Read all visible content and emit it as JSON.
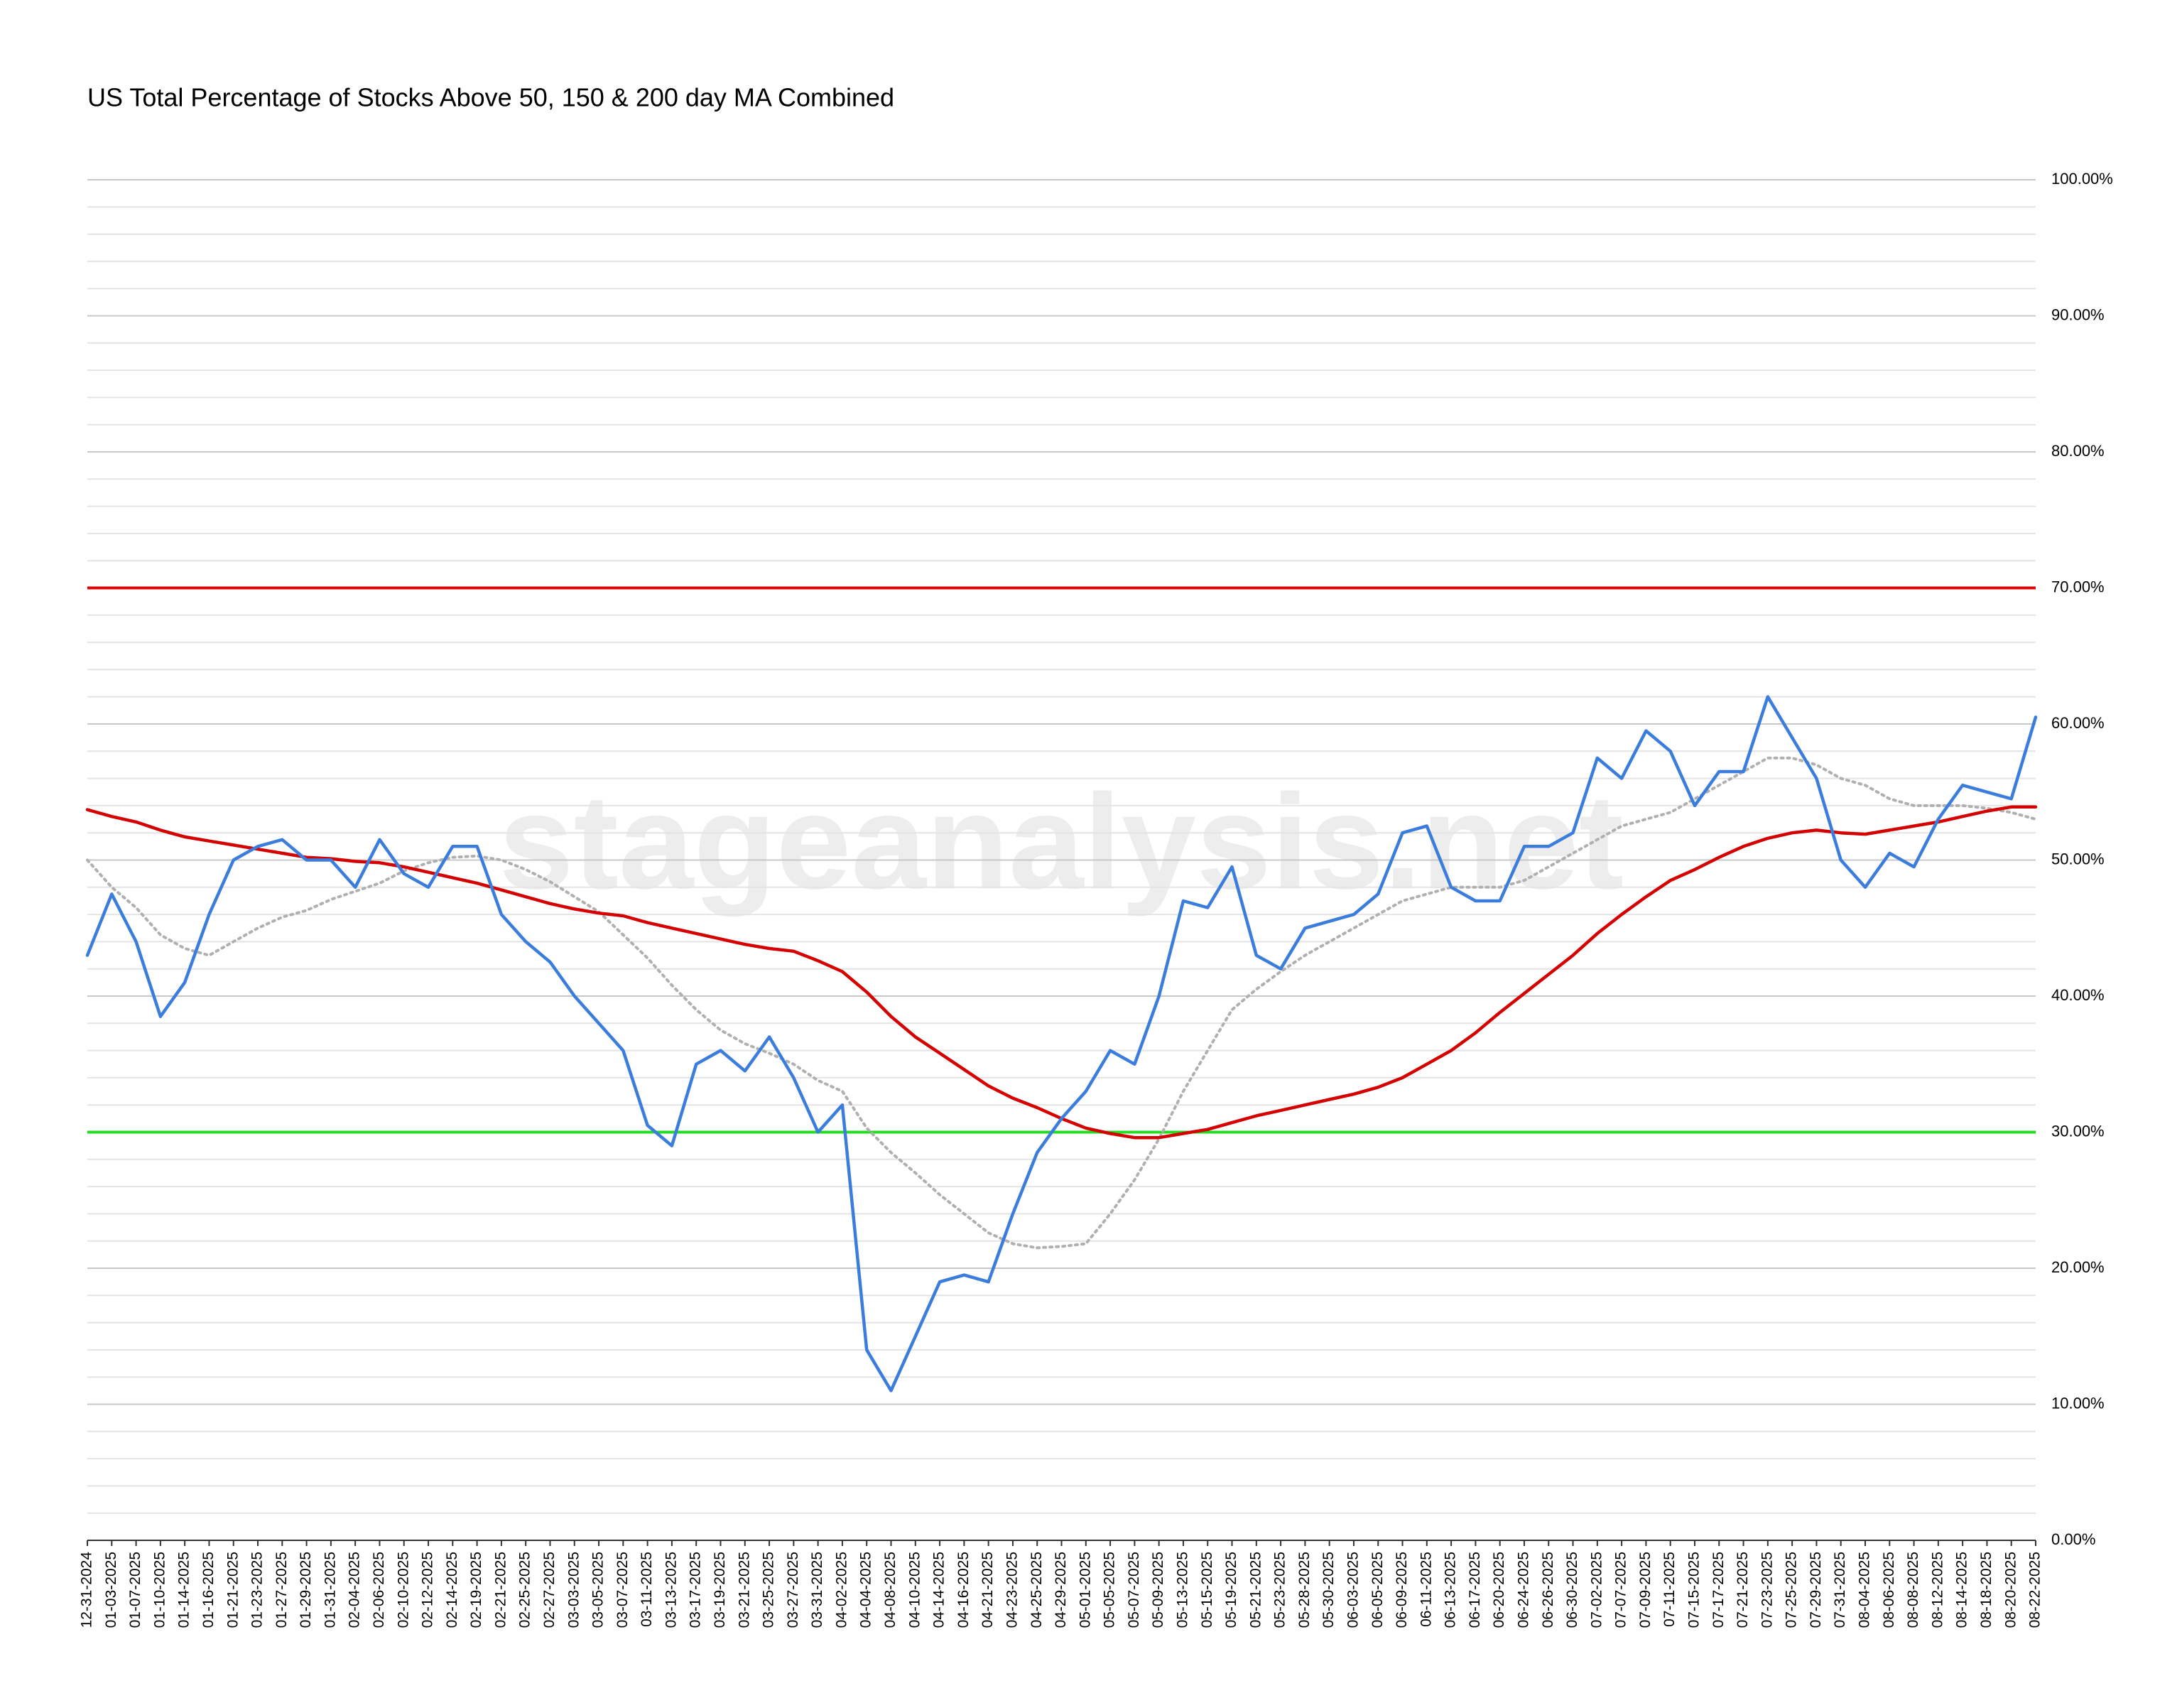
{
  "chart_data": {
    "type": "line",
    "title": "US Total Percentage of Stocks Above 50, 150 & 200 day MA Combined",
    "watermark": "stageanalysis.net",
    "categories": [
      "12-31-2024",
      "01-03-2025",
      "01-07-2025",
      "01-10-2025",
      "01-14-2025",
      "01-16-2025",
      "01-21-2025",
      "01-23-2025",
      "01-27-2025",
      "01-29-2025",
      "01-31-2025",
      "02-04-2025",
      "02-06-2025",
      "02-10-2025",
      "02-12-2025",
      "02-14-2025",
      "02-19-2025",
      "02-21-2025",
      "02-25-2025",
      "02-27-2025",
      "03-03-2025",
      "03-05-2025",
      "03-07-2025",
      "03-11-2025",
      "03-13-2025",
      "03-17-2025",
      "03-19-2025",
      "03-21-2025",
      "03-25-2025",
      "03-27-2025",
      "03-31-2025",
      "04-02-2025",
      "04-04-2025",
      "04-08-2025",
      "04-10-2025",
      "04-14-2025",
      "04-16-2025",
      "04-21-2025",
      "04-23-2025",
      "04-25-2025",
      "04-29-2025",
      "05-01-2025",
      "05-05-2025",
      "05-07-2025",
      "05-09-2025",
      "05-13-2025",
      "05-15-2025",
      "05-19-2025",
      "05-21-2025",
      "05-23-2025",
      "05-28-2025",
      "05-30-2025",
      "06-03-2025",
      "06-05-2025",
      "06-09-2025",
      "06-11-2025",
      "06-13-2025",
      "06-17-2025",
      "06-20-2025",
      "06-24-2025",
      "06-26-2025",
      "06-30-2025",
      "07-02-2025",
      "07-07-2025",
      "07-09-2025",
      "07-11-2025",
      "07-15-2025",
      "07-17-2025",
      "07-21-2025",
      "07-23-2025",
      "07-25-2025",
      "07-29-2025",
      "07-31-2025",
      "08-04-2025",
      "08-06-2025",
      "08-08-2025",
      "08-12-2025",
      "08-14-2025",
      "08-18-2025",
      "08-20-2025",
      "08-22-2025"
    ],
    "series": [
      {
        "color": "#3b7ddd",
        "dashed": false,
        "values": [
          43,
          47.5,
          44,
          38.5,
          41,
          46,
          50,
          51,
          51.5,
          50,
          50,
          48,
          51.5,
          49,
          48,
          51,
          51,
          46,
          44,
          42.5,
          40,
          38,
          36,
          30.5,
          29,
          35,
          36,
          34.5,
          37,
          34,
          30,
          32,
          14,
          11,
          15,
          19,
          19.5,
          19,
          24,
          28.5,
          31,
          33,
          36,
          35,
          40,
          47,
          46.5,
          49.5,
          43,
          42,
          45,
          45.5,
          46,
          47.5,
          52,
          52.5,
          48,
          47,
          47,
          51,
          51,
          52,
          57.5,
          56,
          59.5,
          58,
          54,
          56.5,
          56.5,
          62,
          59,
          56,
          50,
          48,
          50.5,
          49.5,
          53,
          55.5,
          55,
          54.5,
          60.5
        ]
      },
      {
        "color": "#d50000",
        "dashed": false,
        "values": [
          53.7,
          53.2,
          52.8,
          52.2,
          51.7,
          51.4,
          51.1,
          50.8,
          50.5,
          50.2,
          50.1,
          49.9,
          49.8,
          49.5,
          49.1,
          48.7,
          48.3,
          47.8,
          47.3,
          46.8,
          46.4,
          46.1,
          45.9,
          45.4,
          45,
          44.6,
          44.2,
          43.8,
          43.5,
          43.3,
          42.6,
          41.8,
          40.3,
          38.5,
          37,
          35.8,
          34.6,
          33.4,
          32.5,
          31.8,
          31,
          30.3,
          29.9,
          29.6,
          29.6,
          29.9,
          30.2,
          30.7,
          31.2,
          31.6,
          32,
          32.4,
          32.8,
          33.3,
          34,
          35,
          36,
          37.3,
          38.8,
          40.2,
          41.6,
          43,
          44.6,
          46,
          47.3,
          48.5,
          49.3,
          50.2,
          51,
          51.6,
          52,
          52.2,
          52,
          51.9,
          52.2,
          52.5,
          52.8,
          53.2,
          53.6,
          53.9,
          53.9
        ]
      },
      {
        "color": "#b0b0b0",
        "dashed": true,
        "values": [
          50,
          48,
          46.5,
          44.5,
          43.5,
          43,
          44,
          45,
          45.8,
          46.3,
          47.1,
          47.7,
          48.3,
          49.2,
          49.8,
          50.2,
          50.3,
          50,
          49.3,
          48.4,
          47.3,
          46.2,
          44.5,
          42.8,
          40.8,
          39,
          37.5,
          36.5,
          35.8,
          35,
          33.8,
          33,
          30.3,
          28.5,
          27,
          25.4,
          24,
          22.6,
          21.8,
          21.5,
          21.6,
          21.8,
          24,
          26.5,
          29.5,
          33,
          36,
          39,
          40.5,
          41.8,
          43,
          44,
          45,
          46,
          47,
          47.5,
          48,
          48,
          48,
          48.5,
          49.5,
          50.5,
          51.5,
          52.5,
          53,
          53.5,
          54.5,
          55.5,
          56.5,
          57.5,
          57.5,
          57,
          56,
          55.5,
          54.5,
          54,
          54,
          54,
          53.8,
          53.5,
          53
        ]
      }
    ],
    "hlines": [
      {
        "value": 70,
        "color": "#e00000"
      },
      {
        "value": 30,
        "color": "#22dd22"
      }
    ],
    "ylim": [
      0,
      100
    ],
    "yticks": [
      {
        "value": 0,
        "label": "0.00%"
      },
      {
        "value": 10,
        "label": "10.00%"
      },
      {
        "value": 20,
        "label": "20.00%"
      },
      {
        "value": 30,
        "label": "30.00%"
      },
      {
        "value": 40,
        "label": "40.00%"
      },
      {
        "value": 50,
        "label": "50.00%"
      },
      {
        "value": 60,
        "label": "60.00%"
      },
      {
        "value": 70,
        "label": "70.00%"
      },
      {
        "value": 80,
        "label": "80.00%"
      },
      {
        "value": 90,
        "label": "90.00%"
      },
      {
        "value": 100,
        "label": "100.00%"
      }
    ],
    "minor_ystep": 2,
    "grid": true
  }
}
